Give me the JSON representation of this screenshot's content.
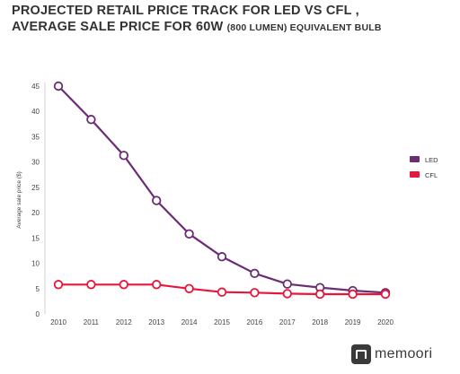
{
  "title": {
    "line1": "PROJECTED RETAIL PRICE TRACK FOR LED VS CFL ,",
    "line2_main": "AVERAGE SALE PRICE FOR 60W",
    "line2_small": "(800 LUMEN) EQUIVALENT BULB"
  },
  "logo": {
    "text": "memoori"
  },
  "chart_data": {
    "type": "line",
    "title": "PROJECTED RETAIL PRICE TRACK FOR LED VS CFL , AVERAGE SALE PRICE FOR 60W (800 LUMEN) EQUIVALENT BULB",
    "xlabel": "",
    "ylabel": "Average sale price ($)",
    "categories": [
      "2010",
      "2011",
      "2012",
      "2013",
      "2014",
      "2015",
      "2016",
      "2017",
      "2018",
      "2019",
      "2020"
    ],
    "ylim": [
      0,
      45
    ],
    "yticks": [
      0,
      5,
      10,
      15,
      20,
      25,
      30,
      35,
      40,
      45
    ],
    "grid": false,
    "legend_position": "right",
    "series": [
      {
        "name": "LED",
        "color": "#6b2d74",
        "values": [
          45.0,
          38.4,
          31.3,
          22.4,
          15.8,
          11.3,
          8.0,
          5.9,
          5.2,
          4.6,
          4.2
        ]
      },
      {
        "name": "CFL",
        "color": "#e8173a",
        "values": [
          5.8,
          5.8,
          5.8,
          5.8,
          5.0,
          4.3,
          4.2,
          4.0,
          3.9,
          3.9,
          3.9
        ]
      }
    ]
  }
}
